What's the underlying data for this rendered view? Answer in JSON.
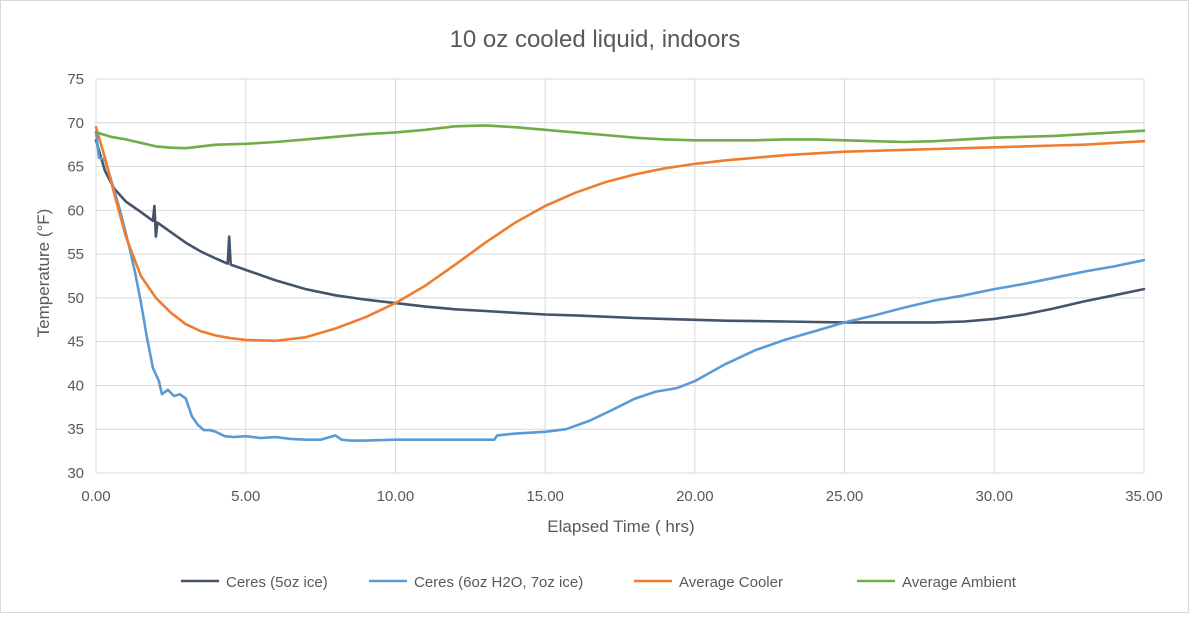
{
  "chart_data": {
    "type": "line",
    "title": "10 oz cooled liquid, indoors",
    "xlabel": "Elapsed Time ( hrs)",
    "ylabel": "Temperature (°F)",
    "xlim": [
      0,
      35
    ],
    "ylim": [
      30,
      75
    ],
    "x_ticks": [
      "0.00",
      "5.00",
      "10.00",
      "15.00",
      "20.00",
      "25.00",
      "30.00",
      "35.00"
    ],
    "y_ticks": [
      "30",
      "35",
      "40",
      "45",
      "50",
      "55",
      "60",
      "65",
      "70",
      "75"
    ],
    "grid": true,
    "legend_position": "bottom",
    "series": [
      {
        "name": "Ceres (5oz ice)",
        "color": "#44546a",
        "points": [
          [
            0,
            68
          ],
          [
            0.3,
            64.5
          ],
          [
            0.6,
            62.5
          ],
          [
            1,
            61
          ],
          [
            1.5,
            59.8
          ],
          [
            1.9,
            58.8
          ],
          [
            1.95,
            60.5
          ],
          [
            2.0,
            57
          ],
          [
            2.05,
            58.6
          ],
          [
            2.5,
            57.5
          ],
          [
            3,
            56.3
          ],
          [
            3.5,
            55.3
          ],
          [
            4,
            54.5
          ],
          [
            4.4,
            53.9
          ],
          [
            4.45,
            57
          ],
          [
            4.5,
            53.8
          ],
          [
            5,
            53.2
          ],
          [
            6,
            52
          ],
          [
            7,
            51
          ],
          [
            8,
            50.3
          ],
          [
            9,
            49.8
          ],
          [
            10,
            49.4
          ],
          [
            11,
            49
          ],
          [
            12,
            48.7
          ],
          [
            13,
            48.5
          ],
          [
            14,
            48.3
          ],
          [
            15,
            48.1
          ],
          [
            16,
            48
          ],
          [
            17,
            47.85
          ],
          [
            18,
            47.7
          ],
          [
            19,
            47.6
          ],
          [
            20,
            47.5
          ],
          [
            21,
            47.4
          ],
          [
            22,
            47.35
          ],
          [
            23,
            47.3
          ],
          [
            24,
            47.25
          ],
          [
            25,
            47.2
          ],
          [
            26,
            47.2
          ],
          [
            27,
            47.2
          ],
          [
            28,
            47.2
          ],
          [
            29,
            47.3
          ],
          [
            30,
            47.6
          ],
          [
            31,
            48.1
          ],
          [
            32,
            48.8
          ],
          [
            33,
            49.6
          ],
          [
            34,
            50.3
          ],
          [
            35,
            51
          ]
        ]
      },
      {
        "name": "Ceres (6oz H2O, 7oz ice)",
        "color": "#5b9bd5",
        "points": [
          [
            0,
            69
          ],
          [
            0.1,
            66
          ],
          [
            0.3,
            65.8
          ],
          [
            0.5,
            63.5
          ],
          [
            0.8,
            60
          ],
          [
            1.1,
            56
          ],
          [
            1.3,
            53
          ],
          [
            1.5,
            49.5
          ],
          [
            1.7,
            45.5
          ],
          [
            1.9,
            42
          ],
          [
            2.1,
            40.5
          ],
          [
            2.2,
            39
          ],
          [
            2.4,
            39.5
          ],
          [
            2.6,
            38.8
          ],
          [
            2.8,
            39
          ],
          [
            3,
            38.5
          ],
          [
            3.2,
            36.5
          ],
          [
            3.4,
            35.5
          ],
          [
            3.6,
            34.9
          ],
          [
            3.8,
            34.9
          ],
          [
            4,
            34.7
          ],
          [
            4.3,
            34.2
          ],
          [
            4.6,
            34.1
          ],
          [
            5,
            34.2
          ],
          [
            5.5,
            34
          ],
          [
            6,
            34.1
          ],
          [
            6.5,
            33.9
          ],
          [
            7,
            33.8
          ],
          [
            7.5,
            33.8
          ],
          [
            8,
            34.3
          ],
          [
            8.2,
            33.8
          ],
          [
            8.5,
            33.7
          ],
          [
            9,
            33.7
          ],
          [
            10,
            33.8
          ],
          [
            11,
            33.8
          ],
          [
            12,
            33.8
          ],
          [
            13,
            33.8
          ],
          [
            13.3,
            33.8
          ],
          [
            13.4,
            34.3
          ],
          [
            14,
            34.5
          ],
          [
            15,
            34.7
          ],
          [
            15.7,
            35
          ],
          [
            16.5,
            36
          ],
          [
            17.3,
            37.3
          ],
          [
            18,
            38.5
          ],
          [
            18.7,
            39.3
          ],
          [
            19.4,
            39.7
          ],
          [
            20,
            40.5
          ],
          [
            21,
            42.4
          ],
          [
            22,
            44
          ],
          [
            23,
            45.2
          ],
          [
            24,
            46.2
          ],
          [
            25,
            47.2
          ],
          [
            26,
            48
          ],
          [
            27,
            48.9
          ],
          [
            28,
            49.7
          ],
          [
            29,
            50.3
          ],
          [
            30,
            51
          ],
          [
            31,
            51.6
          ],
          [
            32,
            52.3
          ],
          [
            33,
            53
          ],
          [
            34,
            53.6
          ],
          [
            35,
            54.3
          ]
        ]
      },
      {
        "name": "Average Cooler",
        "color": "#ed7d31",
        "points": [
          [
            0,
            69.5
          ],
          [
            0.3,
            66
          ],
          [
            0.6,
            62
          ],
          [
            1,
            57
          ],
          [
            1.5,
            52.5
          ],
          [
            2,
            50
          ],
          [
            2.5,
            48.3
          ],
          [
            3,
            47
          ],
          [
            3.5,
            46.2
          ],
          [
            4,
            45.7
          ],
          [
            4.5,
            45.4
          ],
          [
            5,
            45.2
          ],
          [
            6,
            45.1
          ],
          [
            7,
            45.5
          ],
          [
            8,
            46.5
          ],
          [
            9,
            47.8
          ],
          [
            10,
            49.4
          ],
          [
            11,
            51.4
          ],
          [
            12,
            53.8
          ],
          [
            13,
            56.3
          ],
          [
            14,
            58.6
          ],
          [
            15,
            60.5
          ],
          [
            16,
            62
          ],
          [
            17,
            63.2
          ],
          [
            18,
            64.1
          ],
          [
            19,
            64.8
          ],
          [
            20,
            65.3
          ],
          [
            21,
            65.7
          ],
          [
            22,
            66
          ],
          [
            23,
            66.3
          ],
          [
            24,
            66.5
          ],
          [
            25,
            66.7
          ],
          [
            26,
            66.8
          ],
          [
            27,
            66.9
          ],
          [
            28,
            67
          ],
          [
            29,
            67.1
          ],
          [
            30,
            67.2
          ],
          [
            31,
            67.3
          ],
          [
            32,
            67.4
          ],
          [
            33,
            67.5
          ],
          [
            34,
            67.7
          ],
          [
            35,
            67.9
          ]
        ]
      },
      {
        "name": "Average Ambient",
        "color": "#70ad47",
        "points": [
          [
            0,
            68.9
          ],
          [
            0.5,
            68.4
          ],
          [
            1,
            68.1
          ],
          [
            1.5,
            67.7
          ],
          [
            2,
            67.3
          ],
          [
            2.5,
            67.15
          ],
          [
            3,
            67.1
          ],
          [
            3.5,
            67.3
          ],
          [
            4,
            67.5
          ],
          [
            5,
            67.6
          ],
          [
            6,
            67.8
          ],
          [
            7,
            68.1
          ],
          [
            8,
            68.4
          ],
          [
            9,
            68.7
          ],
          [
            10,
            68.9
          ],
          [
            11,
            69.2
          ],
          [
            12,
            69.6
          ],
          [
            13,
            69.7
          ],
          [
            13.5,
            69.6
          ],
          [
            14,
            69.5
          ],
          [
            15,
            69.2
          ],
          [
            16,
            68.9
          ],
          [
            17,
            68.6
          ],
          [
            18,
            68.3
          ],
          [
            19,
            68.1
          ],
          [
            20,
            68
          ],
          [
            21,
            68
          ],
          [
            22,
            68
          ],
          [
            23,
            68.1
          ],
          [
            24,
            68.1
          ],
          [
            25,
            68
          ],
          [
            26,
            67.9
          ],
          [
            27,
            67.8
          ],
          [
            28,
            67.9
          ],
          [
            29,
            68.1
          ],
          [
            30,
            68.3
          ],
          [
            31,
            68.4
          ],
          [
            32,
            68.5
          ],
          [
            33,
            68.7
          ],
          [
            34,
            68.9
          ],
          [
            35,
            69.1
          ]
        ]
      }
    ]
  }
}
